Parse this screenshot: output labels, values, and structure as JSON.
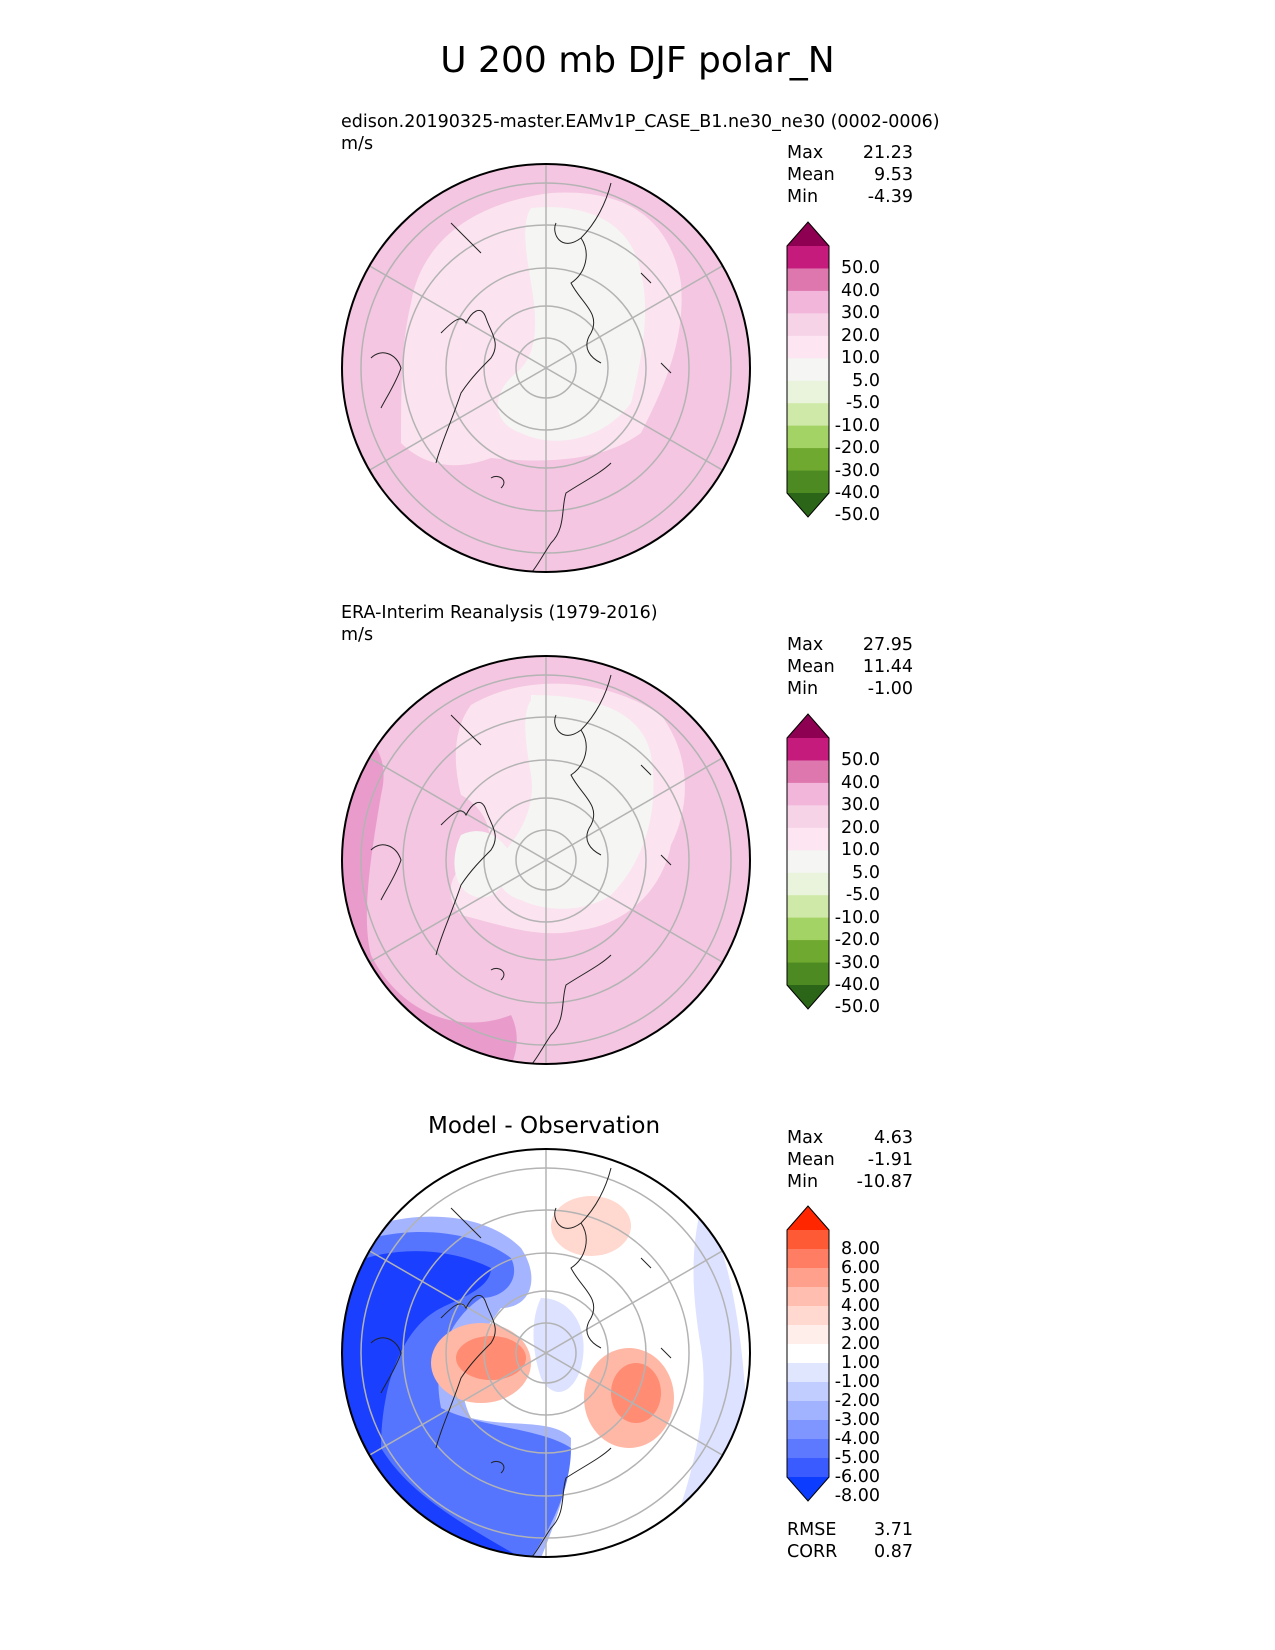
{
  "title": "U 200 mb DJF polar_N",
  "panels": [
    {
      "case": "edison.20190325-master.EAMv1P_CASE_B1.ne30_ne30 (0002-0006)",
      "units": "m/s",
      "stats": {
        "max_label": "Max",
        "max": "21.23",
        "mean_label": "Mean",
        "mean": "9.53",
        "min_label": "Min",
        "min": "-4.39"
      }
    },
    {
      "case": "ERA-Interim Reanalysis (1979-2016)",
      "units": "m/s",
      "stats": {
        "max_label": "Max",
        "max": "27.95",
        "mean_label": "Mean",
        "mean": "11.44",
        "min_label": "Min",
        "min": "-1.00"
      }
    },
    {
      "title": "Model - Observation",
      "stats": {
        "max_label": "Max",
        "max": "4.63",
        "mean_label": "Mean",
        "mean": "-1.91",
        "min_label": "Min",
        "min": "-10.87"
      },
      "metrics": {
        "rmse_label": "RMSE",
        "rmse": "3.71",
        "corr_label": "CORR",
        "corr": "0.87"
      }
    }
  ],
  "colorbars": {
    "main": {
      "labels": [
        "50.0",
        "40.0",
        "30.0",
        "20.0",
        "10.0",
        "5.0",
        "-5.0",
        "-10.0",
        "-20.0",
        "-30.0",
        "-40.0",
        "-50.0"
      ],
      "colors": [
        "#8e0152",
        "#c51b7d",
        "#de77ae",
        "#f1b6da",
        "#f7d3e8",
        "#fde6f1",
        "#f5f5f3",
        "#eaf4dc",
        "#cfe9a8",
        "#a3d365",
        "#6fa92f",
        "#4d8b22",
        "#2a6518"
      ]
    },
    "diff": {
      "labels": [
        "8.00",
        "6.00",
        "5.00",
        "4.00",
        "3.00",
        "2.00",
        "1.00",
        "-1.00",
        "-2.00",
        "-3.00",
        "-4.00",
        "-5.00",
        "-6.00",
        "-8.00"
      ],
      "colors": [
        "#ff2600",
        "#ff5a36",
        "#ff7d62",
        "#ffa08c",
        "#ffbeb0",
        "#ffd8cf",
        "#ffeeea",
        "#ffffff",
        "#e1e6ff",
        "#c1ccff",
        "#a1b2ff",
        "#7f95ff",
        "#5d79ff",
        "#3a5bff",
        "#0c3dff"
      ]
    }
  },
  "map_fields": {
    "panel1": {
      "background": "#f4c6e1",
      "regions": [
        {
          "level": "10.0 to 20.0",
          "color": "#f4c6e1"
        },
        {
          "level": "5.0 to 10.0",
          "color": "#fbe3ef"
        },
        {
          "level": "-5.0 to 5.0",
          "color": "#f5f5f3"
        }
      ]
    },
    "panel2": {
      "background": "#f4c6e1",
      "regions": [
        {
          "level": "20.0 to 30.0",
          "color": "#e99ccc"
        },
        {
          "level": "10.0 to 20.0",
          "color": "#f4c6e1"
        },
        {
          "level": "5.0 to 10.0",
          "color": "#fbe3ef"
        },
        {
          "level": "-5.0 to 5.0",
          "color": "#f5f5f3"
        }
      ]
    },
    "panel3": {
      "background": "#ffffff",
      "regions": [
        {
          "level": "-8.00 and below",
          "color": "#1a3fff"
        },
        {
          "level": "-6.00 to -5.00",
          "color": "#5575ff"
        },
        {
          "level": "-4.00 to -2.00",
          "color": "#a4b4ff"
        },
        {
          "level": "-2.00 to -1.00",
          "color": "#dce2ff"
        },
        {
          "level": "2.00 to 4.00",
          "color": "#ffb8a6"
        },
        {
          "level": "4.00 to 6.00",
          "color": "#ff8c73"
        }
      ]
    }
  }
}
